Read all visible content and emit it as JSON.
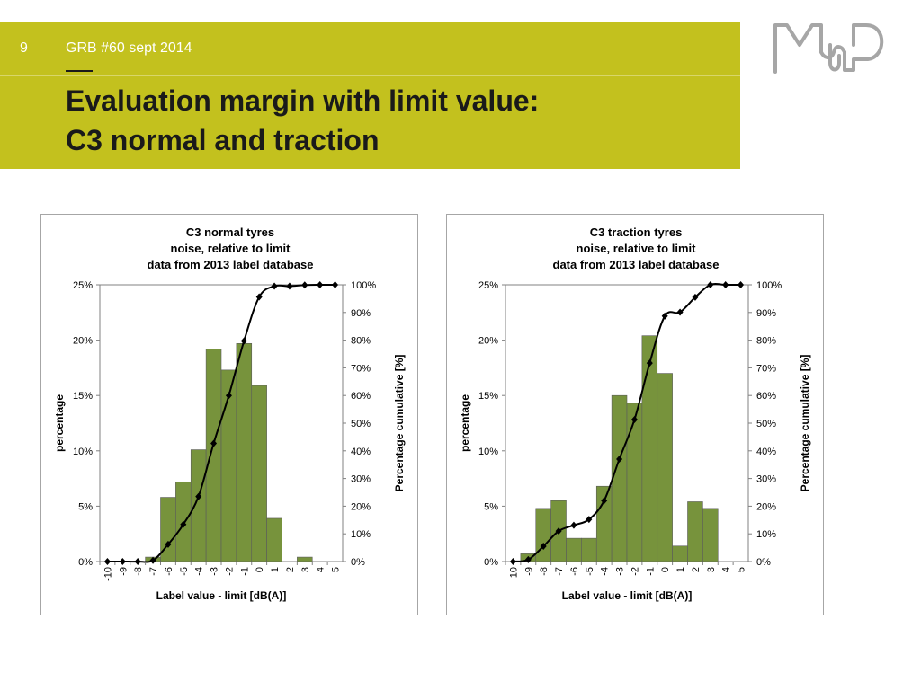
{
  "slide": {
    "number": "9",
    "subtitle": "GRB #60 sept 2014",
    "title_line1": "Evaluation margin with limit value:",
    "title_line2": "C3 normal and traction",
    "accent_color": "#c3c11e",
    "logo_icon": "mp-logo-icon"
  },
  "chart_data": [
    {
      "type": "bar",
      "title_lines": [
        "C3 normal tyres",
        "noise, relative to limit",
        "data from 2013 label database"
      ],
      "xlabel": "Label value - limit [dB(A)]",
      "ylabel": "percentage",
      "y2label": "Percentage cumulative [%]",
      "categories": [
        "-10",
        "-9",
        "-8",
        "-7",
        "-6",
        "-5",
        "-4",
        "-3",
        "-2",
        "-1",
        "0",
        "1",
        "2",
        "3",
        "4",
        "5"
      ],
      "ylim": [
        0,
        25
      ],
      "y_ticks": [
        "0%",
        "5%",
        "10%",
        "15%",
        "20%",
        "25%"
      ],
      "y2lim": [
        0,
        100
      ],
      "y2_ticks": [
        "0%",
        "10%",
        "20%",
        "30%",
        "40%",
        "50%",
        "60%",
        "70%",
        "80%",
        "90%",
        "100%"
      ],
      "bar_color": "#77933c",
      "series": [
        {
          "name": "percentage",
          "type": "bar",
          "axis": "left",
          "values": [
            0,
            0,
            0,
            0.4,
            5.8,
            7.2,
            10.1,
            19.2,
            17.3,
            19.7,
            15.9,
            3.9,
            0,
            0.4,
            0,
            0
          ]
        },
        {
          "name": "Percentage cumulative",
          "type": "line",
          "axis": "right",
          "values": [
            0,
            0,
            0,
            0.4,
            6.2,
            13.4,
            23.5,
            42.7,
            60.0,
            79.7,
            95.6,
            99.5,
            99.5,
            99.9,
            100,
            100
          ]
        }
      ]
    },
    {
      "type": "bar",
      "title_lines": [
        "C3 traction tyres",
        "noise, relative to limit",
        "data from 2013 label database"
      ],
      "xlabel": "Label value - limit [dB(A)]",
      "ylabel": "percentage",
      "y2label": "Percentage cumulative [%]",
      "categories": [
        "-10",
        "-9",
        "-8",
        "-7",
        "-6",
        "-5",
        "-4",
        "-3",
        "-2",
        "-1",
        "0",
        "1",
        "2",
        "3",
        "4",
        "5"
      ],
      "ylim": [
        0,
        25
      ],
      "y_ticks": [
        "0%",
        "5%",
        "10%",
        "15%",
        "20%",
        "25%"
      ],
      "y2lim": [
        0,
        100
      ],
      "y2_ticks": [
        "0%",
        "10%",
        "20%",
        "30%",
        "40%",
        "50%",
        "60%",
        "70%",
        "80%",
        "90%",
        "100%"
      ],
      "bar_color": "#77933c",
      "series": [
        {
          "name": "percentage",
          "type": "bar",
          "axis": "left",
          "values": [
            0,
            0.7,
            4.8,
            5.5,
            2.1,
            2.1,
            6.8,
            15.0,
            14.3,
            20.4,
            17.0,
            1.4,
            5.4,
            4.8,
            0,
            0
          ]
        },
        {
          "name": "Percentage cumulative",
          "type": "line",
          "axis": "right",
          "values": [
            0,
            0.7,
            5.5,
            11.0,
            13.1,
            15.2,
            22.0,
            37.0,
            51.3,
            71.7,
            88.7,
            90.1,
            95.5,
            100,
            100,
            100
          ]
        }
      ]
    }
  ]
}
